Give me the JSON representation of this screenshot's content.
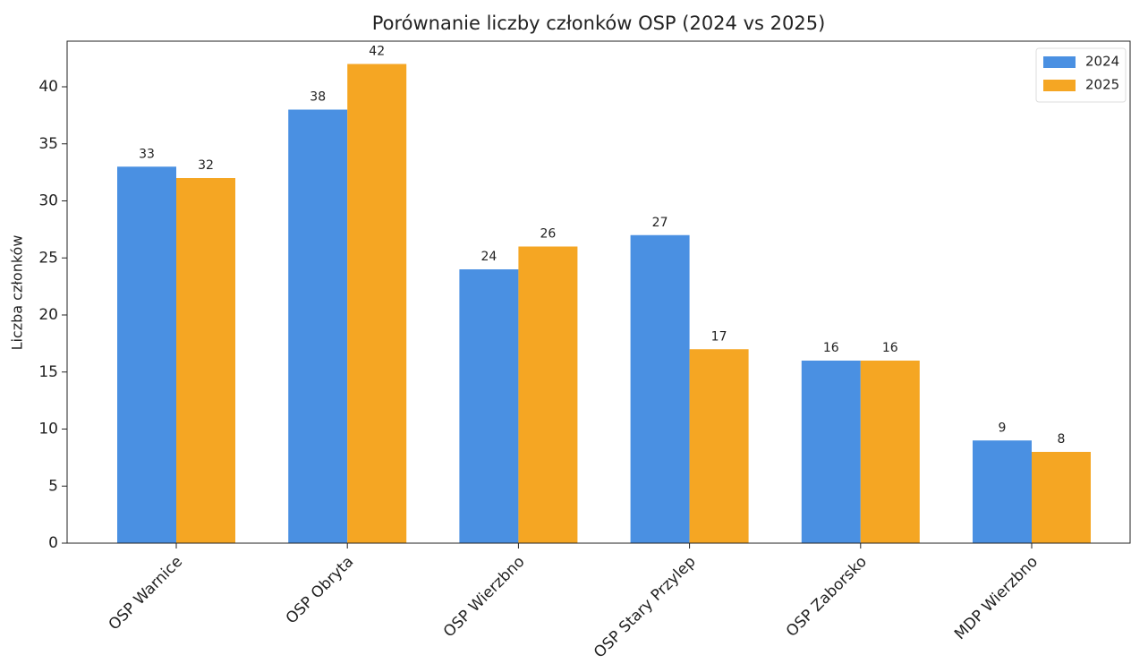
{
  "chart_data": {
    "type": "bar",
    "title": "Porównanie liczby członków OSP (2024 vs 2025)",
    "ylabel": "Liczba członków",
    "categories": [
      "OSP Warnice",
      "OSP Obryta",
      "OSP Wierzbno",
      "OSP Stary Przylep",
      "OSP Zaborsko",
      "MDP Wierzbno"
    ],
    "series": [
      {
        "name": "2024",
        "color": "#4a90e2",
        "values": [
          33,
          38,
          24,
          27,
          16,
          9
        ]
      },
      {
        "name": "2025",
        "color": "#f5a623",
        "values": [
          32,
          42,
          26,
          17,
          16,
          8
        ]
      }
    ],
    "ylim": [
      0,
      44
    ],
    "yticks": [
      0,
      5,
      10,
      15,
      20,
      25,
      30,
      35,
      40
    ],
    "legend": "upper right"
  }
}
